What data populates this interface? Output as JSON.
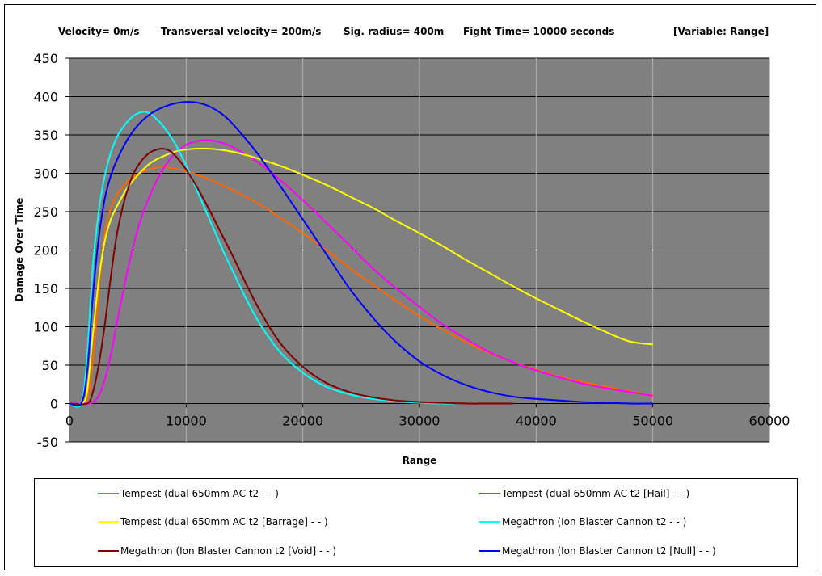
{
  "header": {
    "velocity": "Velocity= 0m/s",
    "transversal": "Transversal velocity= 200m/s",
    "sig_radius": "Sig. radius=  400m",
    "fight_time": "Fight Time= 10000 seconds",
    "variable": "[Variable: Range]"
  },
  "chart_data": {
    "type": "line",
    "title": "",
    "xlabel": "Range",
    "ylabel": "Damage Over Time",
    "xlim": [
      0,
      60000
    ],
    "ylim": [
      -50,
      450
    ],
    "xticks": [
      "0",
      "10000",
      "20000",
      "30000",
      "40000",
      "50000",
      "60000"
    ],
    "yticks": [
      "-50",
      "0",
      "50",
      "100",
      "150",
      "200",
      "250",
      "300",
      "350",
      "400",
      "450"
    ],
    "grid": true,
    "plot_background": "#808080",
    "legend_position": "bottom",
    "series": [
      {
        "name": "Tempest (dual 650mm AC t2 -  - )",
        "color": "#ff6600",
        "x": [
          0,
          1000,
          1500,
          2000,
          2500,
          3000,
          3500,
          4000,
          5000,
          6000,
          7000,
          8000,
          9000,
          10000,
          12000,
          14000,
          16000,
          18000,
          20000,
          22000,
          24000,
          26000,
          28000,
          30000,
          32000,
          34000,
          36000,
          38000,
          40000,
          42000,
          44000,
          46000,
          48000,
          50000
        ],
        "y": [
          0,
          0,
          5,
          55,
          145,
          220,
          252,
          270,
          290,
          300,
          306,
          308,
          306,
          303,
          292,
          278,
          262,
          243,
          222,
          200,
          177,
          155,
          134,
          114,
          96,
          80,
          66,
          54,
          44,
          35,
          28,
          22,
          16,
          11
        ]
      },
      {
        "name": "Tempest (dual 650mm AC t2 [Hail] -  - )",
        "color": "#ff00ff",
        "x": [
          0,
          1500,
          2000,
          2500,
          3000,
          3500,
          4000,
          5000,
          6000,
          7000,
          8000,
          9000,
          10000,
          11000,
          12000,
          13000,
          14000,
          16000,
          18000,
          20000,
          22000,
          24000,
          26000,
          28000,
          30000,
          32000,
          34000,
          36000,
          38000,
          40000,
          42000,
          44000,
          46000,
          48000,
          50000
        ],
        "y": [
          0,
          0,
          2,
          10,
          30,
          60,
          100,
          175,
          235,
          275,
          305,
          325,
          337,
          342,
          343,
          340,
          334,
          316,
          292,
          265,
          236,
          206,
          176,
          150,
          126,
          103,
          84,
          67,
          54,
          43,
          34,
          26,
          20,
          15,
          10
        ]
      },
      {
        "name": "Tempest (dual 650mm AC t2 [Barrage] -  - )",
        "color": "#ffff00",
        "x": [
          0,
          1000,
          1500,
          2000,
          2500,
          3000,
          3500,
          4000,
          5000,
          6000,
          7000,
          8000,
          9000,
          10000,
          12000,
          14000,
          16000,
          18000,
          20000,
          22000,
          24000,
          26000,
          28000,
          30000,
          32000,
          34000,
          36000,
          38000,
          40000,
          42000,
          44000,
          46000,
          48000,
          50000
        ],
        "y": [
          0,
          0,
          15,
          90,
          160,
          210,
          238,
          255,
          282,
          300,
          314,
          322,
          328,
          331,
          332,
          328,
          320,
          310,
          298,
          285,
          270,
          255,
          238,
          222,
          205,
          187,
          170,
          153,
          137,
          122,
          107,
          93,
          81,
          77
        ]
      },
      {
        "name": "Megathron (Ion Blaster Cannon t2 -  - )",
        "color": "#00ffff",
        "x": [
          0,
          1000,
          1500,
          2000,
          2500,
          3000,
          3500,
          4000,
          4500,
          5000,
          5500,
          6000,
          6500,
          7000,
          7500,
          8000,
          9000,
          10000,
          11000,
          12000,
          13000,
          14000,
          16000,
          18000,
          20000,
          22000,
          24000,
          26000,
          28000,
          30000,
          32000,
          33000
        ],
        "y": [
          0,
          0,
          60,
          180,
          250,
          295,
          325,
          345,
          358,
          368,
          375,
          379,
          380,
          377,
          370,
          362,
          340,
          310,
          275,
          240,
          205,
          172,
          112,
          68,
          40,
          22,
          12,
          6,
          3,
          1,
          0,
          0
        ]
      },
      {
        "name": "Megathron (Ion Blaster Cannon t2 [Void] -  - )",
        "color": "#800000",
        "x": [
          0,
          1500,
          2000,
          2500,
          3000,
          3500,
          4000,
          4500,
          5000,
          5500,
          6000,
          6500,
          7000,
          7500,
          8000,
          8500,
          9000,
          10000,
          11000,
          12000,
          13000,
          14000,
          16000,
          18000,
          20000,
          22000,
          24000,
          26000,
          28000,
          30000,
          32000,
          34000,
          36000,
          38000
        ],
        "y": [
          0,
          0,
          15,
          50,
          100,
          160,
          215,
          252,
          280,
          300,
          313,
          322,
          328,
          331,
          332,
          330,
          324,
          305,
          280,
          252,
          222,
          192,
          130,
          80,
          48,
          27,
          15,
          8,
          4,
          2,
          1,
          0,
          0,
          0
        ]
      },
      {
        "name": "Megathron (Ion Blaster Cannon t2 [Null] -  - )",
        "color": "#0000ff",
        "x": [
          0,
          1000,
          1500,
          2000,
          2500,
          3000,
          3500,
          4000,
          5000,
          6000,
          7000,
          8000,
          9000,
          10000,
          11000,
          12000,
          13000,
          14000,
          16000,
          18000,
          20000,
          22000,
          24000,
          26000,
          28000,
          30000,
          32000,
          34000,
          36000,
          38000,
          40000,
          42000,
          44000,
          46000,
          48000,
          50000
        ],
        "y": [
          0,
          0,
          40,
          140,
          215,
          265,
          295,
          315,
          345,
          365,
          378,
          386,
          391,
          393,
          392,
          387,
          378,
          364,
          328,
          285,
          240,
          195,
          150,
          112,
          80,
          55,
          37,
          24,
          15,
          9,
          6,
          4,
          2,
          1,
          0,
          0
        ]
      }
    ]
  }
}
